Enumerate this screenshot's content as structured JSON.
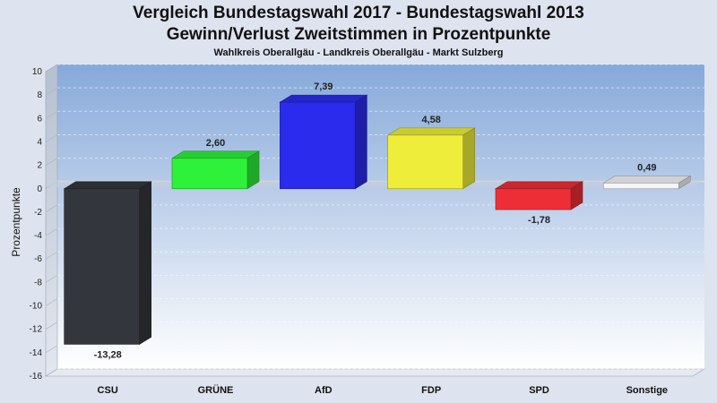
{
  "chart_data": {
    "type": "bar",
    "title": "Vergleich Bundestagswahl 2017 - Bundestagswahl 2013",
    "subtitle": "Gewinn/Verlust Zweitstimmen in Prozentpunkte",
    "caption": "Wahlkreis Oberallgäu - Landkreis Oberallgäu - Markt Sulzberg",
    "ylabel": "Prozentpunkte",
    "xlabel": "",
    "ylim": [
      -16,
      10
    ],
    "yticks": [
      10,
      8,
      6,
      4,
      2,
      0,
      -2,
      -4,
      -6,
      -8,
      -10,
      -12,
      -14,
      -16
    ],
    "grid": true,
    "categories": [
      "CSU",
      "GRÜNE",
      "AfD",
      "FDP",
      "SPD",
      "Sonstige"
    ],
    "values": [
      -13.28,
      2.6,
      7.39,
      4.58,
      -1.78,
      0.49
    ],
    "value_labels": [
      "-13,28",
      "2,60",
      "7,39",
      "4,58",
      "-1,78",
      "0,49"
    ],
    "colors": [
      "#33363c",
      "#2ef23a",
      "#2b2bee",
      "#eeee3a",
      "#ee2e36",
      "#f4f6fa"
    ]
  }
}
